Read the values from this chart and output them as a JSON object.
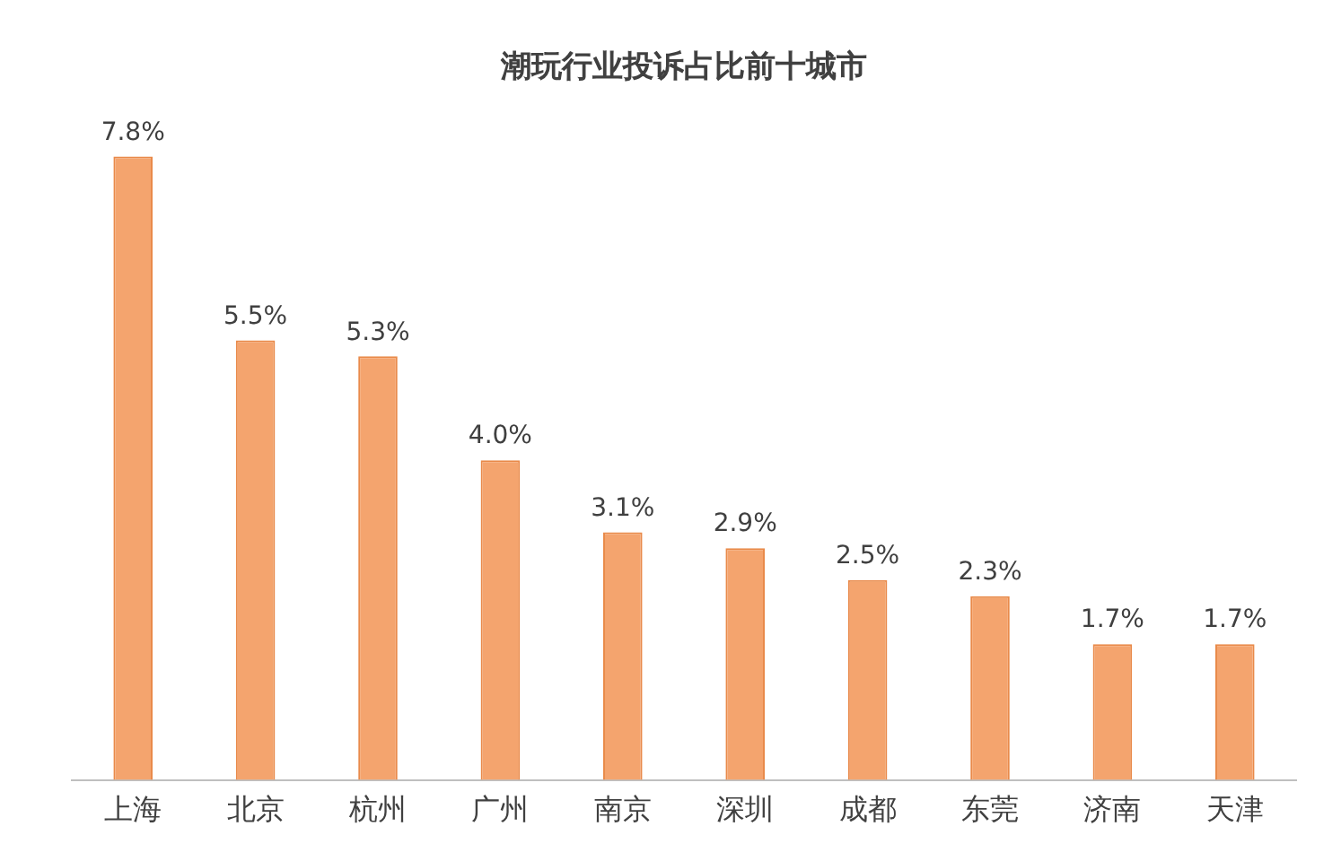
{
  "chart_data": {
    "type": "bar",
    "title": "潮玩行业投诉占比前十城市",
    "categories": [
      "上海",
      "北京",
      "杭州",
      "广州",
      "南京",
      "深圳",
      "成都",
      "东莞",
      "济南",
      "天津"
    ],
    "values": [
      7.8,
      5.5,
      5.3,
      4.0,
      3.1,
      2.9,
      2.5,
      2.3,
      1.7,
      1.7
    ],
    "value_labels": [
      "7.8%",
      "5.5%",
      "5.3%",
      "4.0%",
      "3.1%",
      "2.9%",
      "2.5%",
      "2.3%",
      "1.7%",
      "1.7%"
    ],
    "color": "#f4a46e",
    "grid": false,
    "legend": false
  }
}
